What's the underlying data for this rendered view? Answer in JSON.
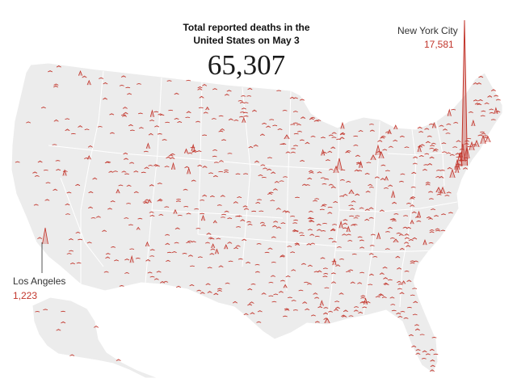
{
  "colors": {
    "land": "#ececec",
    "borders": "#ffffff",
    "spike": "#c2352b",
    "leader": "#555555"
  },
  "headline": {
    "line1": "Total reported deaths in the",
    "line2": "United States on May 3"
  },
  "total_deaths": "65,307",
  "callouts": {
    "nyc": {
      "name": "New York City",
      "value": "17,581",
      "deaths": 17581
    },
    "la": {
      "name": "Los Angeles",
      "value": "1,223",
      "deaths": 1223
    }
  },
  "map": {
    "type": "spike-map",
    "region": "United States",
    "metric": "reported deaths",
    "date": "May 3"
  }
}
